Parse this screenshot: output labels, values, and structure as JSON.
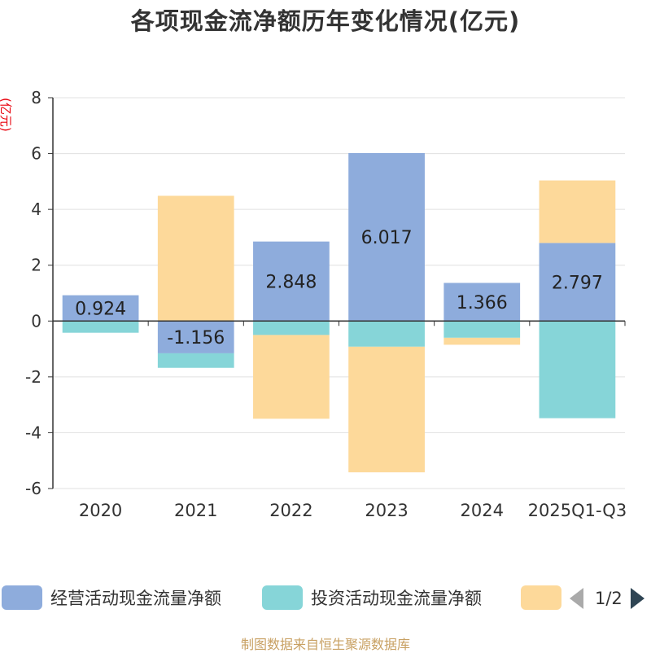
{
  "chart_data": {
    "type": "bar",
    "stacked": true,
    "title": "各项现金流净额历年变化情况(亿元)",
    "ylabel": "(亿元)",
    "xlabel": "",
    "ylim": [
      -6,
      8
    ],
    "yticks": [
      -6,
      -4,
      -2,
      0,
      2,
      4,
      6,
      8
    ],
    "grid": true,
    "legend_position": "bottom",
    "categories": [
      "2020",
      "2021",
      "2022",
      "2023",
      "2024",
      "2025Q1-Q3"
    ],
    "series": [
      {
        "name": "经营活动现金流量净额",
        "color": "#8eacdc",
        "values": [
          0.924,
          -1.156,
          2.848,
          6.017,
          1.366,
          2.797
        ],
        "data_labels": [
          "0.924",
          "-1.156",
          "2.848",
          "6.017",
          "1.366",
          "2.797"
        ]
      },
      {
        "name": "投资活动现金流量净额",
        "color": "#86d5d8",
        "values": [
          -0.42,
          -0.52,
          -0.5,
          -0.92,
          -0.6,
          -3.48
        ]
      },
      {
        "name": "",
        "color": "#fdd99a",
        "values": [
          0,
          4.486,
          -3.0,
          -4.5,
          -0.25,
          2.24
        ]
      }
    ]
  },
  "legend": {
    "pager_text": "1/2"
  },
  "source_text": "制图数据来自恒生聚源数据库"
}
